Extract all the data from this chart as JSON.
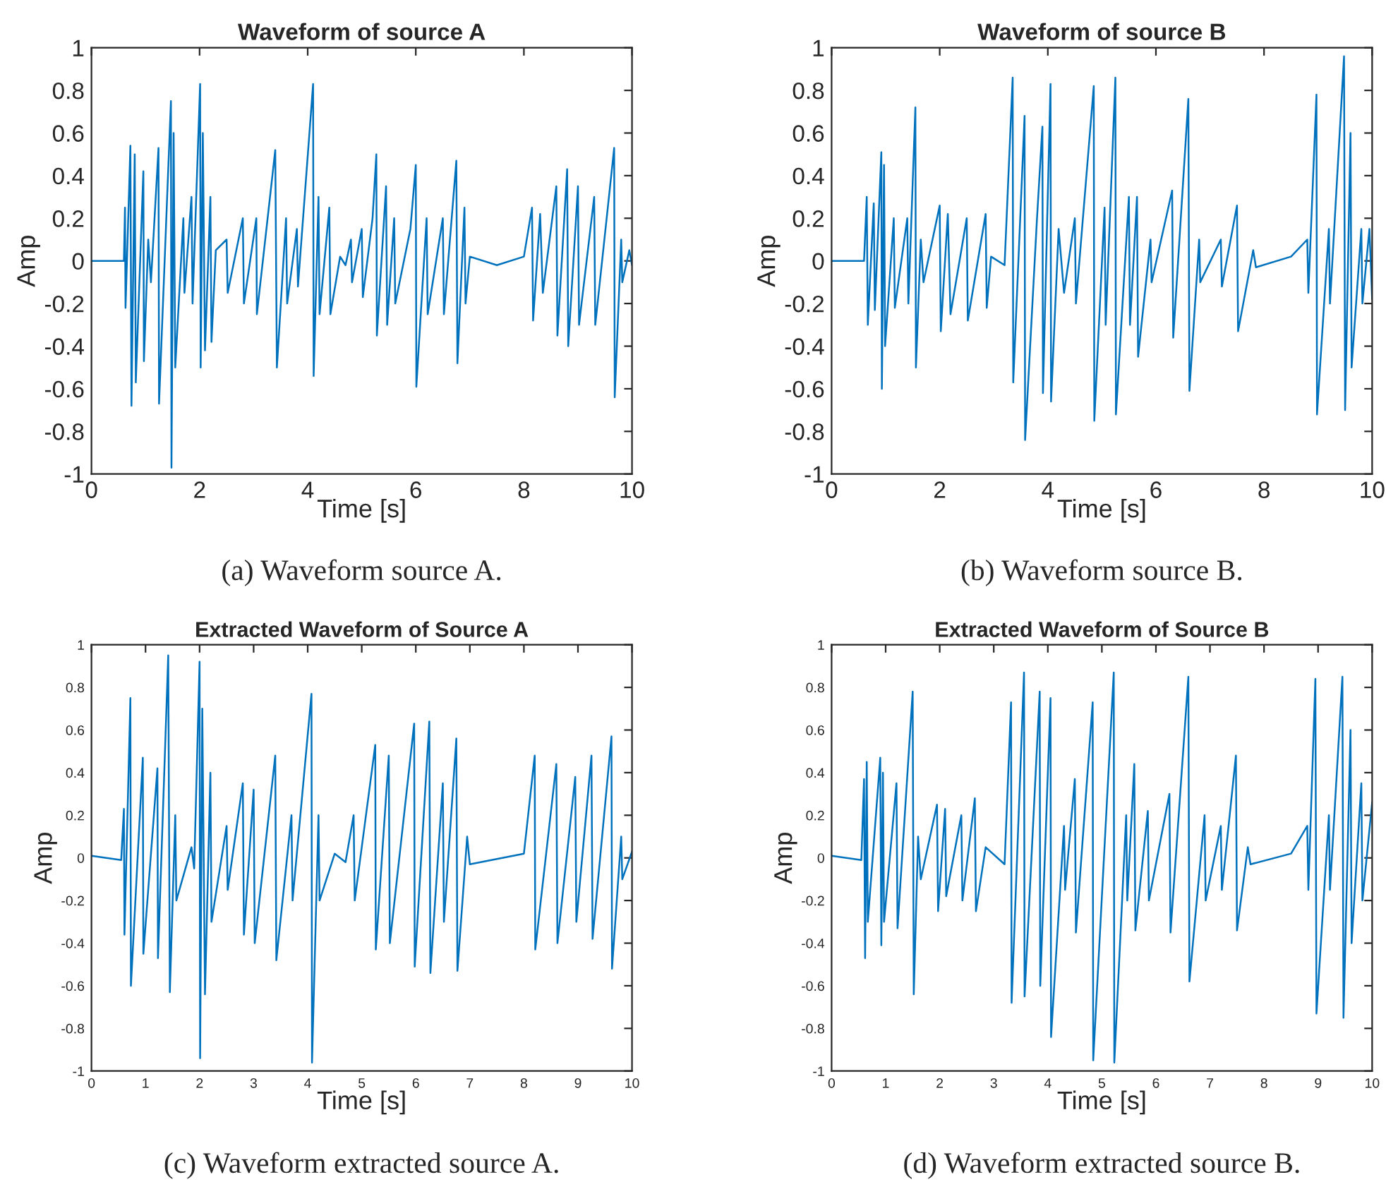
{
  "chart_data": [
    {
      "type": "line",
      "title": "Waveform of source A",
      "xlabel": "Time [s]",
      "ylabel": "Amp",
      "xlim": [
        0,
        10
      ],
      "ylim": [
        -1,
        1
      ],
      "xticks": [
        0,
        2,
        4,
        6,
        8,
        10
      ],
      "yticks": [
        -1,
        -0.8,
        -0.6,
        -0.4,
        -0.2,
        0,
        0.2,
        0.4,
        0.6,
        0.8,
        1
      ],
      "grid": false,
      "annotations": [
        "(a) Waveform source A."
      ],
      "series": [
        {
          "color": "#0072bd",
          "x": [
            0,
            0.6,
            0.62,
            0.63,
            0.72,
            0.74,
            0.8,
            0.82,
            0.96,
            0.97,
            1.05,
            1.1,
            1.24,
            1.25,
            1.4,
            1.47,
            1.48,
            1.52,
            1.55,
            1.7,
            1.72,
            1.85,
            1.87,
            2.01,
            2.02,
            2.06,
            2.1,
            2.2,
            2.22,
            2.3,
            2.5,
            2.52,
            2.8,
            2.82,
            3.05,
            3.06,
            3.4,
            3.43,
            3.6,
            3.62,
            3.8,
            3.82,
            4.1,
            4.11,
            4.2,
            4.22,
            4.4,
            4.42,
            4.6,
            4.7,
            4.8,
            4.82,
            5.0,
            5.02,
            5.2,
            5.27,
            5.28,
            5.45,
            5.47,
            5.6,
            5.62,
            5.9,
            6.0,
            6.01,
            6.2,
            6.22,
            6.5,
            6.52,
            6.75,
            6.77,
            6.9,
            6.92,
            7.0,
            7.5,
            8.0,
            8.15,
            8.17,
            8.3,
            8.35,
            8.6,
            8.62,
            8.8,
            8.82,
            9.0,
            9.02,
            9.3,
            9.32,
            9.67,
            9.68,
            9.8,
            9.82,
            9.95,
            10
          ],
          "values": [
            0,
            0,
            0.25,
            -0.22,
            0.54,
            -0.68,
            0.5,
            -0.57,
            0.42,
            -0.47,
            0.1,
            -0.1,
            0.53,
            -0.67,
            0.3,
            0.75,
            -0.97,
            0.6,
            -0.5,
            0.2,
            -0.15,
            0.3,
            -0.2,
            0.83,
            -0.5,
            0.6,
            -0.42,
            0.3,
            -0.38,
            0.05,
            0.1,
            -0.15,
            0.2,
            -0.2,
            0.2,
            -0.25,
            0.52,
            -0.5,
            0.2,
            -0.2,
            0.15,
            -0.12,
            0.83,
            -0.54,
            0.3,
            -0.25,
            0.25,
            -0.25,
            0.02,
            -0.02,
            0.1,
            -0.1,
            0.15,
            -0.17,
            0.2,
            0.5,
            -0.35,
            0.35,
            -0.3,
            0.2,
            -0.2,
            0.15,
            0.45,
            -0.59,
            0.2,
            -0.25,
            0.2,
            -0.25,
            0.47,
            -0.48,
            0.25,
            -0.2,
            0.02,
            -0.02,
            0.02,
            0.25,
            -0.28,
            0.22,
            -0.15,
            0.35,
            -0.35,
            0.43,
            -0.4,
            0.35,
            -0.3,
            0.3,
            -0.3,
            0.53,
            -0.64,
            0.1,
            -0.1,
            0.05,
            -0.02
          ]
        }
      ]
    },
    {
      "type": "line",
      "title": "Waveform of source B",
      "xlabel": "Time [s]",
      "ylabel": "Amp",
      "xlim": [
        0,
        10
      ],
      "ylim": [
        -1,
        1
      ],
      "xticks": [
        0,
        2,
        4,
        6,
        8,
        10
      ],
      "yticks": [
        -1,
        -0.8,
        -0.6,
        -0.4,
        -0.2,
        0,
        0.2,
        0.4,
        0.6,
        0.8,
        1
      ],
      "grid": false,
      "annotations": [
        "(b) Waveform source B."
      ],
      "series": [
        {
          "color": "#0072bd",
          "x": [
            0,
            0.6,
            0.65,
            0.67,
            0.78,
            0.8,
            0.92,
            0.93,
            0.97,
            0.99,
            1.15,
            1.17,
            1.4,
            1.42,
            1.55,
            1.56,
            1.65,
            1.7,
            2.0,
            2.02,
            2.15,
            2.2,
            2.5,
            2.52,
            2.85,
            2.87,
            2.95,
            3.2,
            3.35,
            3.36,
            3.57,
            3.58,
            3.8,
            3.9,
            3.91,
            4.05,
            4.06,
            4.2,
            4.3,
            4.5,
            4.52,
            4.85,
            4.86,
            5.05,
            5.07,
            5.25,
            5.26,
            5.5,
            5.52,
            5.65,
            5.67,
            5.9,
            5.92,
            6.3,
            6.32,
            6.6,
            6.62,
            6.8,
            6.82,
            7.2,
            7.22,
            7.5,
            7.52,
            7.8,
            7.85,
            8.5,
            8.8,
            8.82,
            8.97,
            8.98,
            9.2,
            9.22,
            9.48,
            9.5,
            9.6,
            9.62,
            9.8,
            9.82,
            9.95,
            10
          ],
          "values": [
            0,
            0,
            0.3,
            -0.3,
            0.27,
            -0.23,
            0.51,
            -0.6,
            0.45,
            -0.4,
            0.2,
            -0.22,
            0.2,
            -0.2,
            0.72,
            -0.5,
            0.1,
            -0.1,
            0.26,
            -0.33,
            0.22,
            -0.25,
            0.2,
            -0.28,
            0.22,
            -0.22,
            0.02,
            -0.02,
            0.86,
            -0.57,
            0.68,
            -0.84,
            0.2,
            0.63,
            -0.62,
            0.83,
            -0.66,
            0.15,
            -0.15,
            0.2,
            -0.2,
            0.82,
            -0.75,
            0.25,
            -0.3,
            0.86,
            -0.72,
            0.3,
            -0.3,
            0.3,
            -0.45,
            0.1,
            -0.1,
            0.33,
            -0.36,
            0.76,
            -0.61,
            0.1,
            -0.1,
            0.1,
            -0.12,
            0.26,
            -0.33,
            0.05,
            -0.03,
            0.02,
            0.1,
            -0.15,
            0.78,
            -0.72,
            0.15,
            -0.2,
            0.96,
            -0.7,
            0.6,
            -0.5,
            0.15,
            -0.2,
            0.15,
            -0.18
          ]
        }
      ]
    },
    {
      "type": "line",
      "title": "Extracted Waveform of Source A",
      "xlabel": "Time [s]",
      "ylabel": "Amp",
      "xlim": [
        0,
        10
      ],
      "ylim": [
        -1,
        1
      ],
      "xticks": [
        0,
        1,
        2,
        3,
        4,
        5,
        6,
        7,
        8,
        9,
        10
      ],
      "yticks": [
        -1,
        -0.8,
        -0.6,
        -0.4,
        -0.2,
        0,
        0.2,
        0.4,
        0.6,
        0.8,
        1
      ],
      "grid": false,
      "annotations": [
        "(c) Waveform extracted source A."
      ],
      "series": [
        {
          "color": "#0072bd",
          "x": [
            0,
            0.55,
            0.6,
            0.61,
            0.72,
            0.73,
            0.95,
            0.96,
            1.22,
            1.23,
            1.42,
            1.45,
            1.55,
            1.57,
            1.85,
            1.9,
            2.0,
            2.01,
            2.05,
            2.1,
            2.2,
            2.22,
            2.5,
            2.52,
            2.8,
            2.82,
            3.0,
            3.02,
            3.4,
            3.42,
            3.7,
            3.72,
            4.07,
            4.08,
            4.2,
            4.22,
            4.5,
            4.7,
            4.85,
            4.87,
            5.25,
            5.26,
            5.5,
            5.52,
            5.97,
            5.98,
            6.25,
            6.27,
            6.5,
            6.52,
            6.75,
            6.77,
            6.95,
            7.0,
            8.0,
            8.2,
            8.21,
            8.6,
            8.62,
            8.95,
            8.97,
            9.25,
            9.27,
            9.62,
            9.63,
            9.8,
            9.82,
            10
          ],
          "values": [
            0.01,
            -0.01,
            0.23,
            -0.36,
            0.75,
            -0.6,
            0.47,
            -0.45,
            0.42,
            -0.47,
            0.95,
            -0.63,
            0.2,
            -0.2,
            0.05,
            -0.05,
            0.92,
            -0.94,
            0.7,
            -0.64,
            0.4,
            -0.3,
            0.15,
            -0.15,
            0.35,
            -0.36,
            0.32,
            -0.4,
            0.48,
            -0.48,
            0.2,
            -0.2,
            0.77,
            -0.96,
            0.2,
            -0.2,
            0.02,
            -0.02,
            0.2,
            -0.2,
            0.53,
            -0.43,
            0.48,
            -0.4,
            0.63,
            -0.51,
            0.64,
            -0.54,
            0.35,
            -0.3,
            0.56,
            -0.53,
            0.1,
            -0.03,
            0.02,
            0.48,
            -0.43,
            0.44,
            -0.4,
            0.38,
            -0.3,
            0.48,
            -0.38,
            0.57,
            -0.52,
            0.1,
            -0.1,
            0.03
          ]
        }
      ]
    },
    {
      "type": "line",
      "title": "Extracted Waveform of Source B",
      "xlabel": "Time [s]",
      "ylabel": "Amp",
      "xlim": [
        0,
        10
      ],
      "ylim": [
        -1,
        1
      ],
      "xticks": [
        0,
        1,
        2,
        3,
        4,
        5,
        6,
        7,
        8,
        9,
        10
      ],
      "yticks": [
        -1,
        -0.8,
        -0.6,
        -0.4,
        -0.2,
        0,
        0.2,
        0.4,
        0.6,
        0.8,
        1
      ],
      "grid": false,
      "annotations": [
        "(d) Waveform extracted source B."
      ],
      "series": [
        {
          "color": "#0072bd",
          "x": [
            0,
            0.55,
            0.6,
            0.62,
            0.65,
            0.67,
            0.9,
            0.92,
            0.95,
            0.97,
            1.2,
            1.22,
            1.5,
            1.52,
            1.6,
            1.65,
            1.95,
            1.97,
            2.1,
            2.12,
            2.4,
            2.42,
            2.65,
            2.67,
            2.85,
            3.2,
            3.32,
            3.33,
            3.56,
            3.57,
            3.85,
            3.86,
            4.05,
            4.06,
            4.3,
            4.32,
            4.5,
            4.52,
            4.83,
            4.84,
            5.22,
            5.23,
            5.45,
            5.47,
            5.6,
            5.62,
            5.85,
            5.87,
            6.25,
            6.27,
            6.6,
            6.62,
            6.9,
            6.92,
            7.2,
            7.22,
            7.48,
            7.5,
            7.7,
            7.75,
            8.5,
            8.8,
            8.82,
            8.95,
            8.97,
            9.2,
            9.22,
            9.45,
            9.47,
            9.6,
            9.62,
            9.8,
            9.82,
            10
          ],
          "values": [
            0.01,
            -0.01,
            0.37,
            -0.47,
            0.45,
            -0.3,
            0.47,
            -0.41,
            0.4,
            -0.3,
            0.35,
            -0.33,
            0.78,
            -0.64,
            0.1,
            -0.1,
            0.25,
            -0.25,
            0.23,
            -0.18,
            0.2,
            -0.2,
            0.28,
            -0.25,
            0.05,
            -0.03,
            0.73,
            -0.68,
            0.87,
            -0.65,
            0.78,
            -0.6,
            0.75,
            -0.84,
            0.15,
            -0.15,
            0.37,
            -0.35,
            0.73,
            -0.95,
            0.87,
            -0.96,
            0.2,
            -0.2,
            0.44,
            -0.34,
            0.22,
            -0.2,
            0.3,
            -0.35,
            0.85,
            -0.58,
            0.2,
            -0.2,
            0.15,
            -0.15,
            0.48,
            -0.34,
            0.05,
            -0.03,
            0.02,
            0.15,
            -0.15,
            0.84,
            -0.73,
            0.2,
            -0.15,
            0.85,
            -0.75,
            0.6,
            -0.4,
            0.35,
            -0.2,
            0.26
          ]
        }
      ]
    }
  ]
}
